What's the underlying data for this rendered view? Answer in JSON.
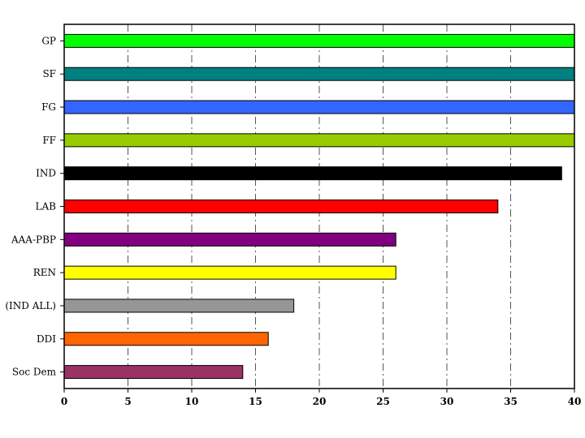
{
  "chart_data": {
    "type": "bar",
    "orientation": "horizontal",
    "title": "",
    "xlabel": "",
    "ylabel": "",
    "xlim": [
      0,
      40
    ],
    "xticks": [
      0,
      5,
      10,
      15,
      20,
      25,
      30,
      35,
      40
    ],
    "grid": "vertical dash-dot lines",
    "legend": "none",
    "categories": [
      "GP",
      "SF",
      "FG",
      "FF",
      "IND",
      "LAB",
      "AAA-PBP",
      "REN",
      "(IND ALL)",
      "DDI",
      "Soc Dem"
    ],
    "values": [
      40,
      40,
      40,
      40,
      39,
      34,
      26,
      26,
      18,
      16,
      14
    ],
    "colors": [
      "#00ff00",
      "#008080",
      "#3366ff",
      "#99cc00",
      "#000000",
      "#ff0000",
      "#800080",
      "#ffff00",
      "#969696",
      "#ff6600",
      "#993366"
    ]
  }
}
